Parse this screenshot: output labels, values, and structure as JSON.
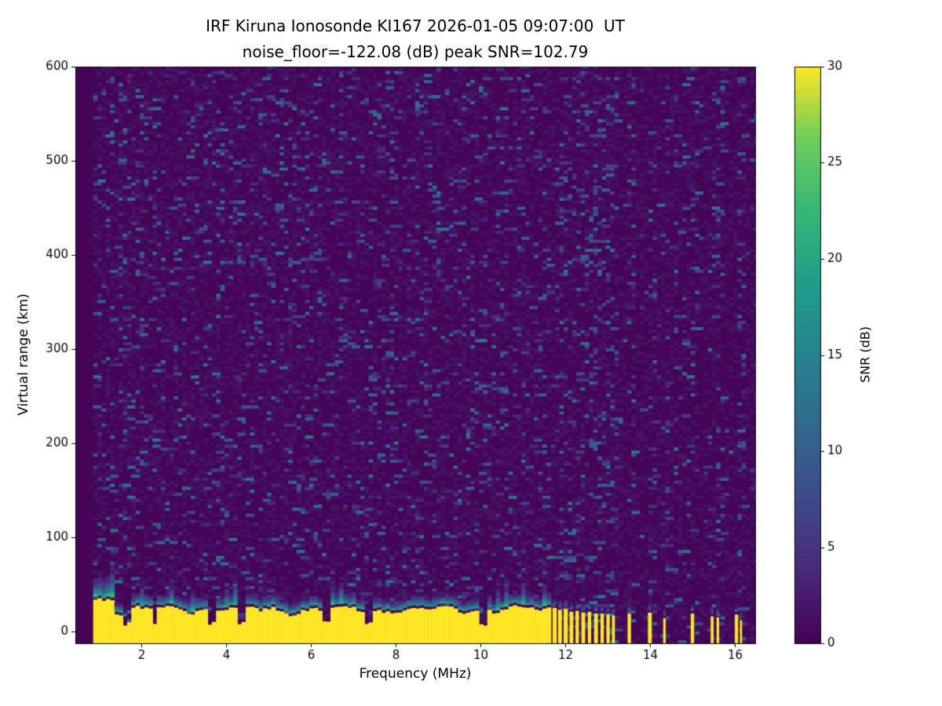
{
  "chart_data": {
    "type": "heatmap",
    "title": "IRF Kiruna Ionosonde KI167 2026-01-05 09:07:00  UT",
    "subtitle": "noise_floor=-122.08 (dB) peak SNR=102.79",
    "xlabel": "Frequency (MHz)",
    "ylabel": "Virtual range (km)",
    "colorbar_label": "SNR (dB)",
    "colormap": "viridis",
    "xlim": [
      0.44,
      16.48
    ],
    "ylim": [
      -12.5,
      600
    ],
    "xticks": [
      2,
      4,
      6,
      8,
      10,
      12,
      14,
      16
    ],
    "yticks": [
      0,
      100,
      200,
      300,
      400,
      500,
      600
    ],
    "colorbar_ticks": [
      0,
      5,
      10,
      15,
      20,
      25,
      30
    ],
    "clim": [
      0,
      30
    ],
    "heatmap": {
      "data_fmin": 0.86,
      "band_fmax": 11.62,
      "ground_band": {
        "snr_db": 30,
        "top_km_mean": 24,
        "transition_top_km": 50
      },
      "notch_freqs_mhz": [
        1.62,
        2.28,
        3.62,
        4.32,
        6.28,
        7.32,
        10.0
      ],
      "stripes": [
        {
          "f": 11.7,
          "h": 25,
          "w": 0.1
        },
        {
          "f": 11.83,
          "h": 23,
          "w": 0.09
        },
        {
          "f": 11.96,
          "h": 24,
          "w": 0.1
        },
        {
          "f": 12.1,
          "h": 21,
          "w": 0.09
        },
        {
          "f": 12.24,
          "h": 22,
          "w": 0.08
        },
        {
          "f": 12.38,
          "h": 20,
          "w": 0.09
        },
        {
          "f": 12.53,
          "h": 21,
          "w": 0.08
        },
        {
          "f": 12.68,
          "h": 19,
          "w": 0.09
        },
        {
          "f": 12.83,
          "h": 19,
          "w": 0.08
        },
        {
          "f": 12.97,
          "h": 18,
          "w": 0.08
        },
        {
          "f": 13.1,
          "h": 17,
          "w": 0.07
        },
        {
          "f": 13.47,
          "h": 19,
          "w": 0.08
        },
        {
          "f": 13.95,
          "h": 20,
          "w": 0.09
        },
        {
          "f": 14.31,
          "h": 14,
          "w": 0.06
        },
        {
          "f": 14.96,
          "h": 19,
          "w": 0.08
        },
        {
          "f": 15.43,
          "h": 16,
          "w": 0.07
        },
        {
          "f": 15.57,
          "h": 15,
          "w": 0.06
        },
        {
          "f": 16.0,
          "h": 18,
          "w": 0.08
        },
        {
          "f": 16.12,
          "h": 12,
          "w": 0.05
        }
      ],
      "noise": {
        "speckle_snr_range": [
          3,
          13
        ],
        "background_snr_range": [
          0,
          2
        ]
      }
    }
  }
}
